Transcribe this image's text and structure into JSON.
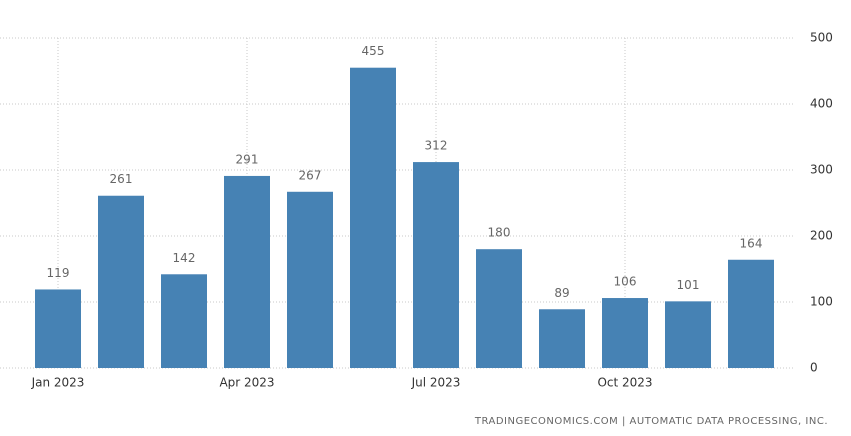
{
  "chart_data": {
    "type": "bar",
    "categories": [
      "Jan 2023",
      null,
      null,
      "Apr 2023",
      null,
      null,
      "Jul 2023",
      null,
      null,
      "Oct 2023",
      null,
      null
    ],
    "values": [
      119,
      261,
      142,
      291,
      267,
      455,
      312,
      180,
      89,
      106,
      101,
      164
    ],
    "color": "#4682b4",
    "ylim": [
      0,
      500
    ],
    "yticks": [
      0,
      100,
      200,
      300,
      400,
      500
    ],
    "grid": true,
    "y_axis_side": "right",
    "source": "TRADINGECONOMICS.COM  |  AUTOMATIC DATA PROCESSING, INC."
  }
}
